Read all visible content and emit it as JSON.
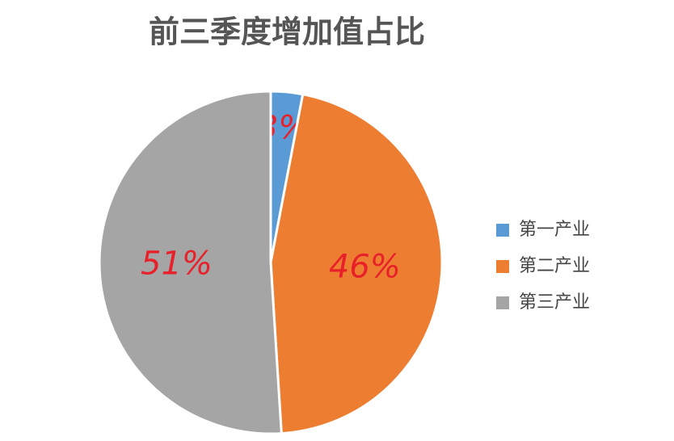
{
  "chart_data": {
    "type": "pie",
    "title": "前三季度增加值占比",
    "categories": [
      "第一产业",
      "第二产业",
      "第三产业"
    ],
    "values": [
      3,
      46,
      51
    ],
    "value_labels": [
      "3%",
      "46%",
      "51%"
    ],
    "colors": [
      "#5b9bd5",
      "#ed7d31",
      "#a5a5a5"
    ],
    "legend": "right"
  }
}
